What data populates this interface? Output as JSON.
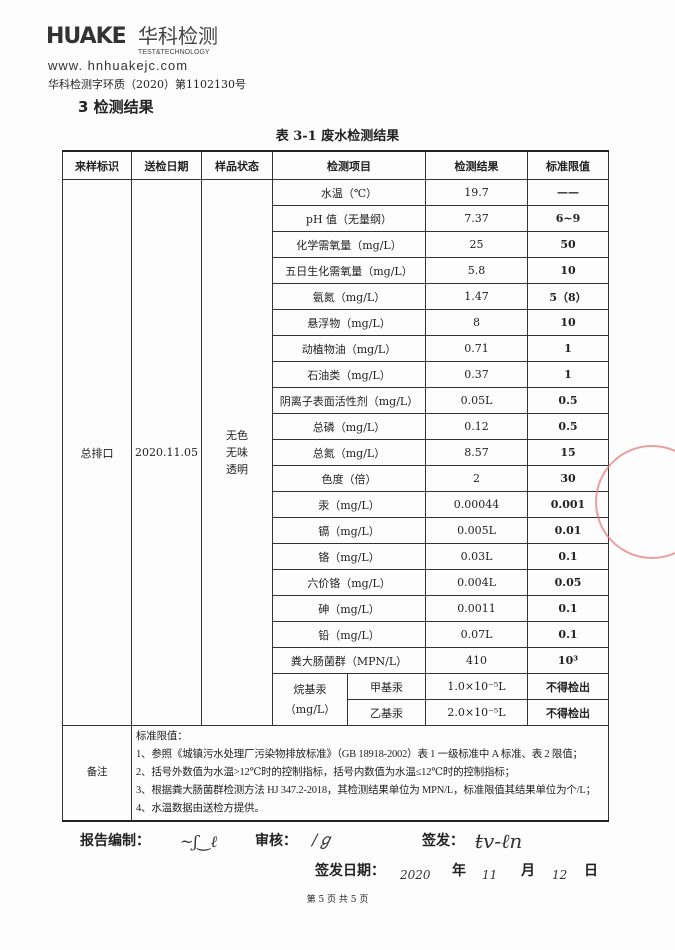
{
  "header": {
    "logo_mark": "HUAKE",
    "logo_cn": "华科检测",
    "logo_en": "TEST&TECHNOLOGY",
    "url": "www. hnhuakejc.com",
    "doc_no": "华科检测字环质（2020）第1102130号",
    "section": "3   检测结果"
  },
  "table": {
    "caption": "表 3-1  废水检测结果",
    "headers": [
      "来样标识",
      "送检日期",
      "样品状态",
      "检测项目",
      "检测结果",
      "标准限值"
    ],
    "sample_id": "总排口",
    "date": "2020.11.05",
    "state": [
      "无色",
      "无味",
      "透明"
    ],
    "rows": [
      [
        "水温（℃）",
        "19.7",
        "——"
      ],
      [
        "pH 值（无量纲）",
        "7.37",
        "6~9"
      ],
      [
        "化学需氧量（mg/L）",
        "25",
        "50"
      ],
      [
        "五日生化需氧量（mg/L）",
        "5.8",
        "10"
      ],
      [
        "氨氮（mg/L）",
        "1.47",
        "5（8）"
      ],
      [
        "悬浮物（mg/L）",
        "8",
        "10"
      ],
      [
        "动植物油（mg/L）",
        "0.71",
        "1"
      ],
      [
        "石油类（mg/L）",
        "0.37",
        "1"
      ],
      [
        "阴离子表面活性剂（mg/L）",
        "0.05L",
        "0.5"
      ],
      [
        "总磷（mg/L）",
        "0.12",
        "0.5"
      ],
      [
        "总氮（mg/L）",
        "8.57",
        "15"
      ],
      [
        "色度（倍）",
        "2",
        "30"
      ],
      [
        "汞（mg/L）",
        "0.00044",
        "0.001"
      ],
      [
        "镉（mg/L）",
        "0.005L",
        "0.01"
      ],
      [
        "铬（mg/L）",
        "0.03L",
        "0.1"
      ],
      [
        "六价铬（mg/L）",
        "0.004L",
        "0.05"
      ],
      [
        "砷（mg/L）",
        "0.0011",
        "0.1"
      ],
      [
        "铅（mg/L）",
        "0.07L",
        "0.1"
      ],
      [
        "粪大肠菌群（MPN/L）",
        "410",
        "10³"
      ]
    ],
    "group": {
      "label1": "烷基汞",
      "label2": "（mg/L）",
      "rows": [
        [
          "甲基汞",
          "1.0×10⁻⁵L",
          "不得检出"
        ],
        [
          "乙基汞",
          "2.0×10⁻⁵L",
          "不得检出"
        ]
      ]
    },
    "notes_label": "备注",
    "notes": [
      "标准限值：",
      "1、参照《城镇污水处理厂污染物排放标准》（GB 18918-2002）表 1 一级标准中 A 标准、表 2 限值；",
      "2、括号外数值为水温>12℃时的控制指标，括号内数值为水温≤12℃时的控制指标；",
      "3、根据粪大肠菌群检测方法 HJ 347.2-2018，其检测结果单位为 MPN/L，标准限值其结果单位为个/L；",
      "4、水温数据由送检方提供。"
    ]
  },
  "footer": {
    "compiled_label": "报告编制：",
    "review_label": "审核：",
    "issue_label": "签发：",
    "date_label": "签发日期：",
    "year_label": "年",
    "month_label": "月",
    "day_label": "日",
    "year_hw": "2020",
    "month_hw": "11",
    "day_hw": "12",
    "page": "第 5 页 共 5 页"
  }
}
